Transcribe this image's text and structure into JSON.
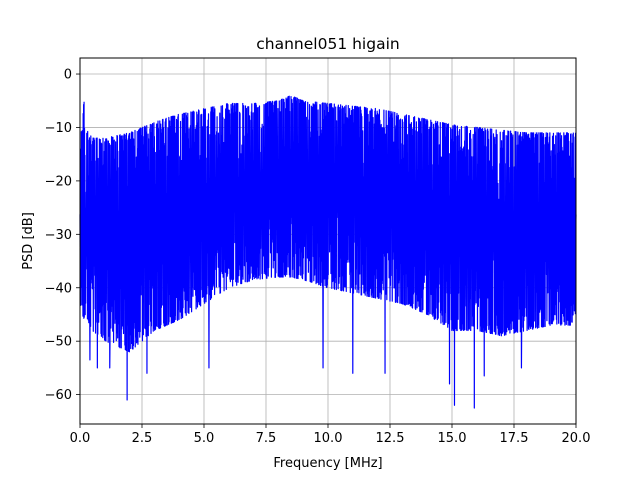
{
  "chart_data": {
    "type": "line",
    "title": "channel051 higain",
    "xlabel": "Frequency [MHz]",
    "ylabel": "PSD [dB]",
    "xlim": [
      0,
      20
    ],
    "ylim": [
      -65.5,
      3
    ],
    "xticks": [
      0,
      2.5,
      5,
      7.5,
      10,
      12.5,
      15,
      17.5,
      20
    ],
    "xtick_labels": [
      "0.0",
      "2.5",
      "5.0",
      "7.5",
      "10.0",
      "12.5",
      "15.0",
      "17.5",
      "20.0"
    ],
    "yticks": [
      0,
      -10,
      -20,
      -30,
      -40,
      -50,
      -60
    ],
    "ytick_labels": [
      "0",
      "−10",
      "−20",
      "−30",
      "−40",
      "−50",
      "−60"
    ],
    "grid": true,
    "legend": "none",
    "series": [
      {
        "color": "#0000ff",
        "envelope_frequency_mhz": [
          0,
          0.1,
          0.15,
          0.2,
          0.5,
          1,
          2,
          3,
          4,
          5,
          6,
          7,
          8,
          8.5,
          9,
          10,
          11,
          12,
          13,
          14,
          15,
          16,
          17,
          18,
          19,
          20
        ],
        "envelope_upper_db": [
          -11,
          -10,
          -3.5,
          -10,
          -12,
          -12,
          -11,
          -9,
          -7.5,
          -6.5,
          -5.5,
          -5.5,
          -5,
          -4,
          -5,
          -5.5,
          -6,
          -6.5,
          -7.5,
          -8.5,
          -9.5,
          -10,
          -10.5,
          -11,
          -11,
          -11
        ],
        "envelope_lower_db": [
          -44,
          -45,
          -46,
          -45,
          -48,
          -50,
          -52,
          -48,
          -46,
          -43,
          -40,
          -38.5,
          -38,
          -38,
          -38.5,
          -40,
          -41,
          -42,
          -43,
          -45,
          -48,
          -48,
          -49,
          -48,
          -47,
          -47
        ],
        "dips": [
          {
            "x": 0.4,
            "y": -53.5
          },
          {
            "x": 0.7,
            "y": -55
          },
          {
            "x": 1.2,
            "y": -55
          },
          {
            "x": 1.9,
            "y": -61
          },
          {
            "x": 2.7,
            "y": -56
          },
          {
            "x": 5.2,
            "y": -55
          },
          {
            "x": 9.8,
            "y": -55
          },
          {
            "x": 11.0,
            "y": -56
          },
          {
            "x": 12.3,
            "y": -56
          },
          {
            "x": 14.9,
            "y": -58
          },
          {
            "x": 15.1,
            "y": -62
          },
          {
            "x": 15.9,
            "y": -62.5
          },
          {
            "x": 16.3,
            "y": -56.5
          },
          {
            "x": 17.8,
            "y": -55
          }
        ]
      }
    ]
  }
}
